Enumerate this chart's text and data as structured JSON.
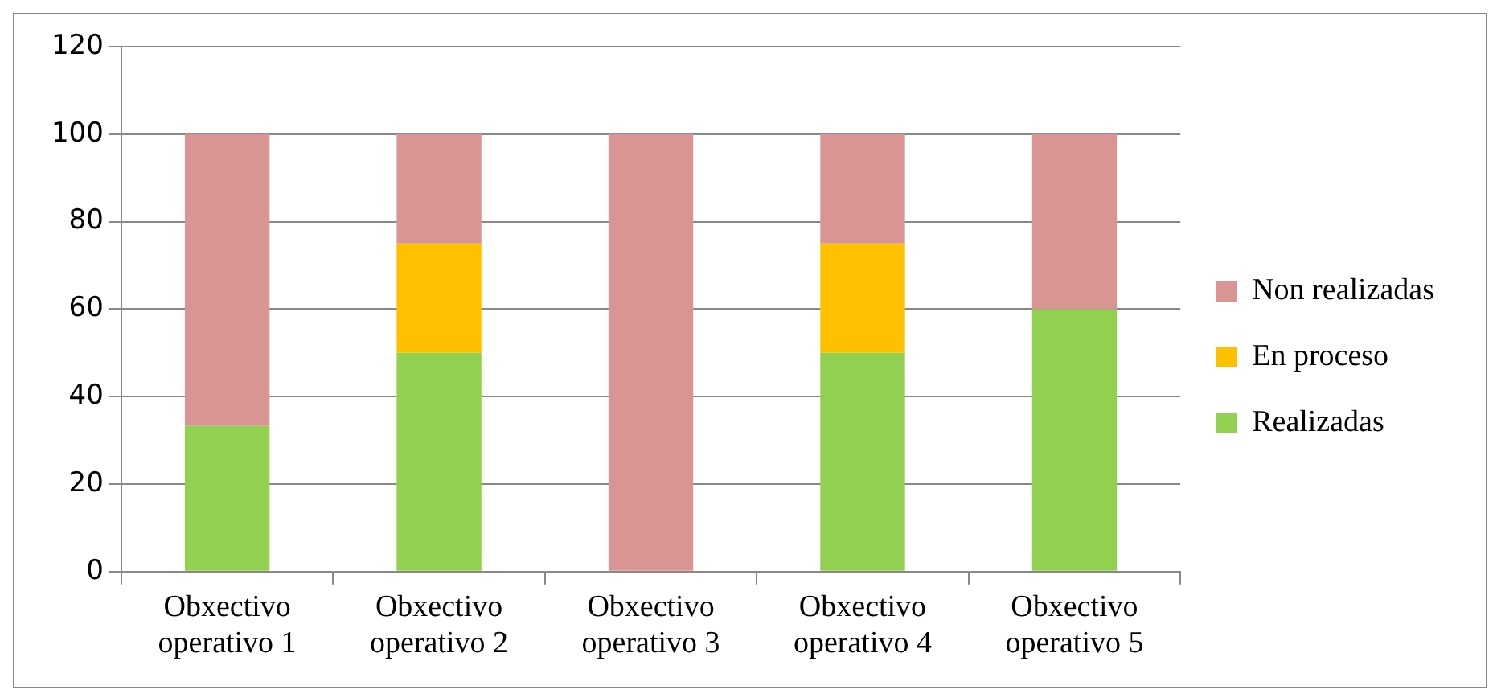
{
  "chart_data": {
    "type": "bar",
    "stacked": true,
    "categories": [
      "Obxectivo operativo 1",
      "Obxectivo operativo 2",
      "Obxectivo operativo 3",
      "Obxectivo operativo 4",
      "Obxectivo operativo 5"
    ],
    "series": [
      {
        "name": "Realizadas",
        "color": "#92d050",
        "values": [
          33.3,
          50,
          0,
          50,
          60
        ]
      },
      {
        "name": "En proceso",
        "color": "#ffc000",
        "values": [
          0,
          25,
          0,
          25,
          0
        ]
      },
      {
        "name": "Non realizadas",
        "color": "#d99594",
        "values": [
          66.7,
          25,
          100,
          25,
          40
        ]
      }
    ],
    "ylim": [
      0,
      120
    ],
    "yticks": [
      0,
      20,
      40,
      60,
      80,
      100,
      120
    ],
    "grid": "y",
    "legend": "right"
  }
}
